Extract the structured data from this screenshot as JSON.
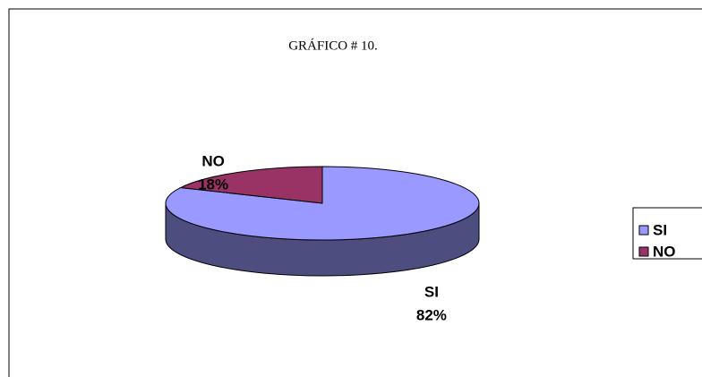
{
  "chart_data": {
    "type": "pie",
    "title": "GRÁFICO # 10.",
    "categories": [
      "SI",
      "NO"
    ],
    "values": [
      82,
      18
    ],
    "value_labels": [
      "82%",
      "18%"
    ],
    "colors": [
      "#9999ff",
      "#993366"
    ],
    "legend": "right"
  }
}
